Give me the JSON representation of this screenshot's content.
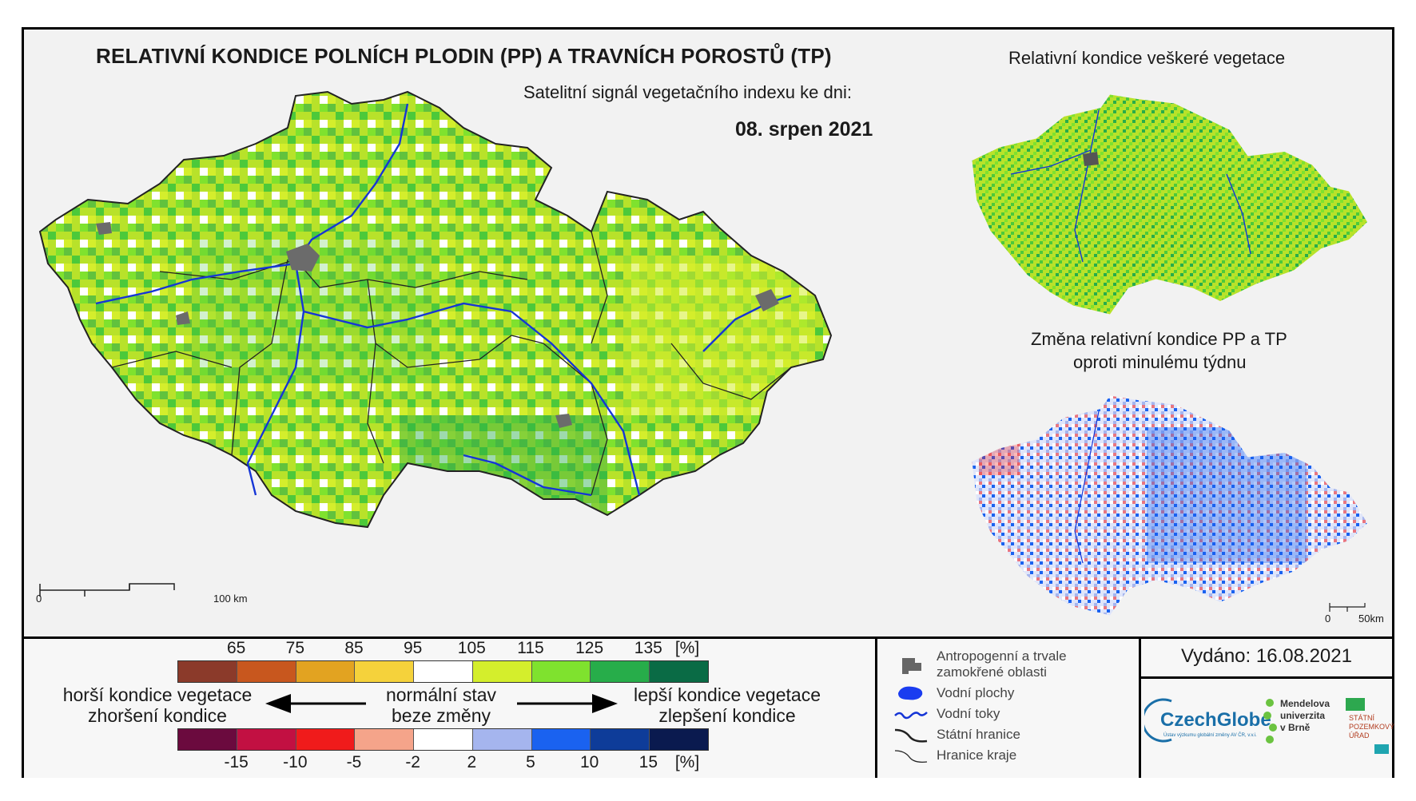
{
  "title": "RELATIVNÍ KONDICE POLNÍCH PLODIN (PP) A TRAVNÍCH POROSTŮ (TP)",
  "subtitle": "Satelitní signál vegetačního indexu ke dni:",
  "date": "08. srpen 2021",
  "right_top_title": "Relativní kondice veškeré vegetace",
  "right_bottom_title_1": "Změna relativní kondice PP a TP",
  "right_bottom_title_2": "oproti minulému týdnu",
  "scale_main": {
    "zero": "0",
    "end": "100 km"
  },
  "scale_small": {
    "zero": "0",
    "end": "50km"
  },
  "legend_condition": {
    "ticks": [
      "65",
      "75",
      "85",
      "95",
      "105",
      "115",
      "125",
      "135"
    ],
    "unit": "[%]",
    "colors": [
      "#8b3a2a",
      "#c8571e",
      "#e2a321",
      "#f5d23b",
      "#ffffff",
      "#d4ee2c",
      "#7fe22e",
      "#27ad4a",
      "#0a6b45"
    ]
  },
  "legend_change": {
    "ticks": [
      "-15",
      "-10",
      "-5",
      "-2",
      "2",
      "5",
      "10",
      "15"
    ],
    "unit": "[%]",
    "colors": [
      "#6b0a3e",
      "#c21042",
      "#f01b1b",
      "#f5a48a",
      "#ffffff",
      "#a5b5ee",
      "#1a62f0",
      "#0e3c99",
      "#0a1a4f"
    ]
  },
  "worse_line1": "horší kondice vegetace",
  "worse_line2": "zhoršení kondice",
  "normal_line1": "normální stav",
  "normal_line2": "beze změny",
  "better_line1": "lepší kondice vegetace",
  "better_line2": "zlepšení kondice",
  "key": {
    "anthropogenic_1": "Antropogenní a trvale",
    "anthropogenic_2": "zamokřené oblasti",
    "water_areas": "Vodní plochy",
    "rivers": "Vodní toky",
    "state_border": "Státní hranice",
    "region_border": "Hranice kraje"
  },
  "issued": "Vydáno: 16.08.2021",
  "logos": {
    "czechglobe": "CzechGlobe",
    "czechglobe_sub": "Ústav výzkumu globální změny AV ČR, v.v.i.",
    "mendel_1": "Mendelova",
    "mendel_2": "univerzita",
    "mendel_3": "v Brně",
    "spu_1": "STÁTNÍ",
    "spu_2": "POZEMKOVÝ",
    "spu_3": "ÚŘAD"
  },
  "colors": {
    "map_greens": [
      "#d4ee2c",
      "#b8e02a",
      "#7fe22e",
      "#4cc93a",
      "#27ad4a"
    ],
    "change_blues": [
      "#ffffff",
      "#c8d2f5",
      "#a5b5ee",
      "#1a62f0",
      "#f01b1b"
    ]
  }
}
